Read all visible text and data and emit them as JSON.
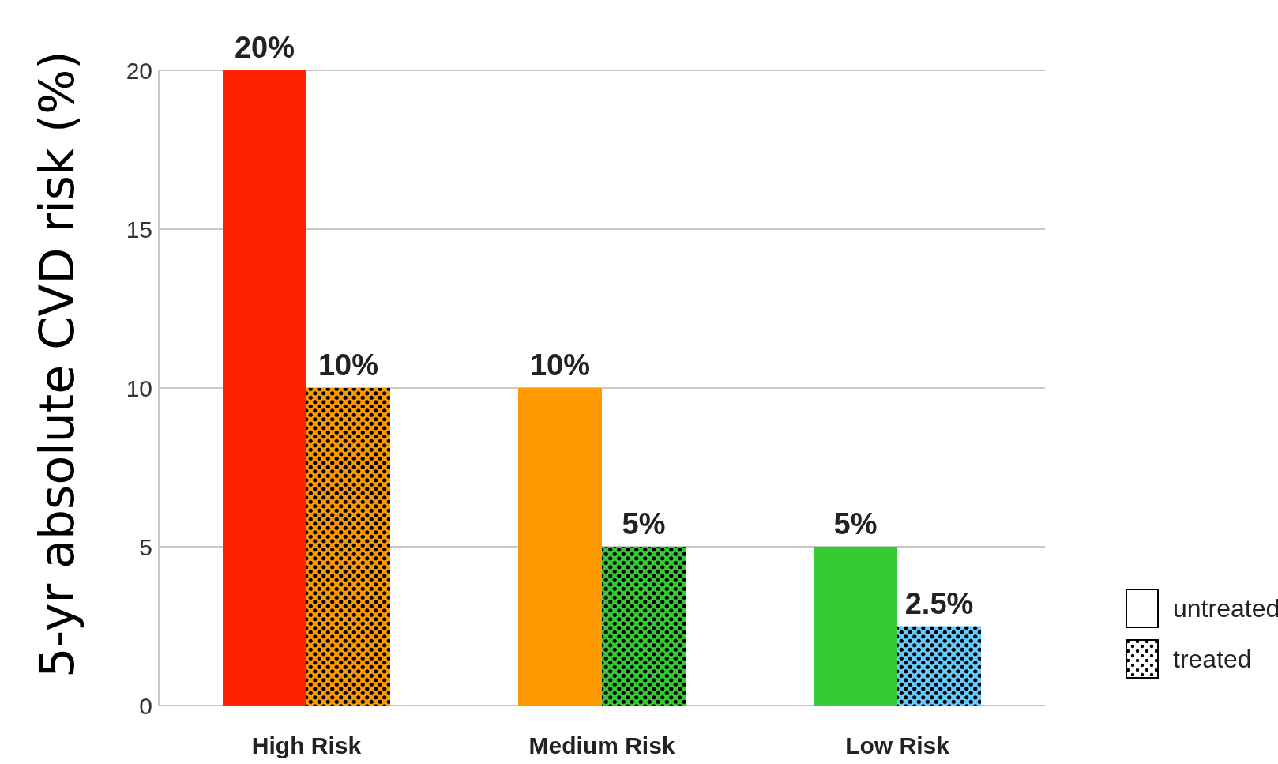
{
  "chart_data": {
    "type": "bar",
    "ylabel": "5-yr absolute CVD risk (%)",
    "categories": [
      "High Risk",
      "Medium Risk",
      "Low Risk"
    ],
    "series": [
      {
        "name": "untreated",
        "colors": [
          "#ff2200",
          "#ff9900",
          "#33cc33"
        ],
        "values": [
          20,
          10,
          5
        ],
        "value_labels": [
          "20%",
          "10%",
          "5%"
        ]
      },
      {
        "name": "treated",
        "colors": [
          "#ff9900",
          "#33cc33",
          "#66ccff"
        ],
        "values": [
          10,
          5,
          2.5
        ],
        "value_labels": [
          "10%",
          "5%",
          "2.5%"
        ]
      }
    ],
    "ylim": [
      0,
      20
    ],
    "yticks": [
      0,
      5,
      10,
      15,
      20
    ],
    "grid": "y",
    "legend": "bottom right"
  }
}
